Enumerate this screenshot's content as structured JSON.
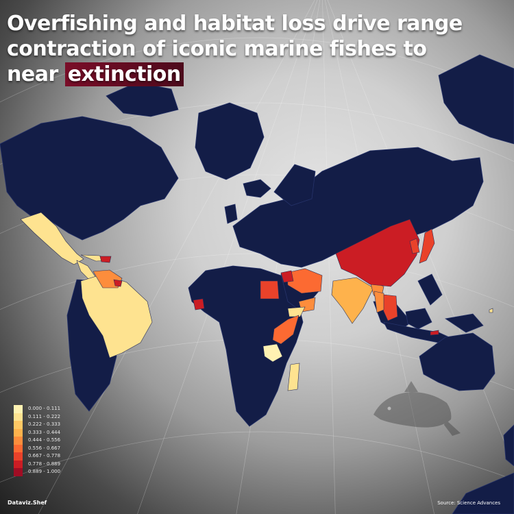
{
  "title": {
    "line_main": "Overfishing and habitat loss drive range contraction of iconic marine fishes to near ",
    "highlight": "extinction"
  },
  "legend": {
    "items": [
      {
        "label": "0.000 - 0.111",
        "color": "#fff2b2"
      },
      {
        "label": "0.111 - 0.222",
        "color": "#fee390"
      },
      {
        "label": "0.222 - 0.333",
        "color": "#fec864"
      },
      {
        "label": "0.333 - 0.444",
        "color": "#feb24c"
      },
      {
        "label": "0.444 - 0.556",
        "color": "#fd8d3c"
      },
      {
        "label": "0.556 - 0.667",
        "color": "#fc6a32"
      },
      {
        "label": "0.667 - 0.778",
        "color": "#e9422a"
      },
      {
        "label": "0.778 - 0.889",
        "color": "#cb1d24"
      },
      {
        "label": "0.889 - 1.000",
        "color": "#a00d24"
      }
    ]
  },
  "colors": {
    "land_no_data": "#131d47",
    "ocean": "#cfcfcf"
  },
  "icons": {
    "watermark": "orca-whale-icon"
  },
  "credit": "Dataviz.Shef",
  "source": "Source: Science Advances"
}
